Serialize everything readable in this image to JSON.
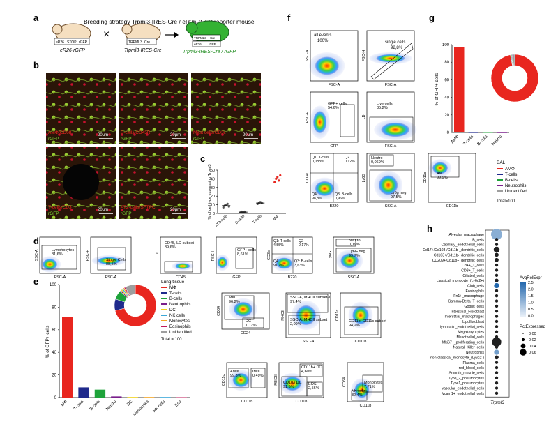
{
  "panels": {
    "a": "a",
    "b": "b",
    "c": "c",
    "d": "d",
    "e": "e",
    "f": "f",
    "g": "g",
    "h": "h"
  },
  "panel_a": {
    "title": "Breeding strategy Trpml3-IRES-Cre / eR26-rGFP reporter mouse",
    "mouse1": {
      "caption": "eR26-rGFP",
      "cassette": [
        "eR26",
        "STOP",
        "rGFP"
      ]
    },
    "mouse2": {
      "caption": "Trpml3-IRES-Cre",
      "cassette": [
        "TRPML3",
        "Cre"
      ]
    },
    "mouse3": {
      "caption": "Trpml3-IRES-Cre / rGFP",
      "cassette_top": [
        "TRPML3",
        "Cre"
      ],
      "cassette_bottom": [
        "eR26",
        "rGFP"
      ]
    },
    "cross": "×"
  },
  "panel_b": {
    "images": [
      {
        "label": "AMΦ/CD68",
        "sub": "rGFP",
        "scale": "20μm"
      },
      {
        "label": "B-cells/CD45R",
        "sub": "rGFP",
        "scale": "20μm"
      },
      {
        "label": "Mast cells/CD3ε",
        "sub": "rGFP",
        "scale": "20μm"
      },
      {
        "label": "T-cells/CD3",
        "sub": "rGFP",
        "scale": "20μm"
      },
      {
        "label": "AT2-cells/SFTPC",
        "sub": "rGFP",
        "scale": "20μm"
      }
    ]
  },
  "panel_c": {
    "chart_data": {
      "type": "scatter",
      "categories": [
        "AT2-cells",
        "B-cells",
        "T-cells",
        "MΦ"
      ],
      "means": [
        9,
        1.5,
        12,
        40
      ],
      "points": [
        [
          7,
          9,
          10,
          11,
          8
        ],
        [
          1,
          2,
          1.5,
          2
        ],
        [
          11,
          12,
          13,
          12
        ],
        [
          36,
          40,
          42,
          38,
          44
        ]
      ],
      "ylabel": "% of cell type expressing Trpml3",
      "ylim": [
        0,
        50
      ],
      "yticks": [
        "0",
        "10",
        "20",
        "30",
        "40",
        "50"
      ]
    }
  },
  "panel_d": {
    "gates": [
      {
        "name": "Lymphocytes",
        "value": "81,6%"
      },
      {
        "name": "Single Cells",
        "value": "88,5%"
      },
      {
        "name": "CD45, LD subset",
        "value": "39,6%"
      },
      {
        "name": "GFP+ cells",
        "value": "8,61%"
      },
      {
        "name": "Q1: T-cells",
        "value": "4,55%"
      },
      {
        "name": "Q2",
        "value": "0,17%"
      },
      {
        "name": "Q4",
        "value": "91,7%"
      },
      {
        "name": "Q3: B-cells",
        "value": "3,63%"
      },
      {
        "name": "Neutro",
        "value": "0,19%"
      },
      {
        "name": "Ly6G neg",
        "value": "99,7%"
      },
      {
        "name": "SSC-A, MHCII subset-1",
        "value": "97,4%"
      },
      {
        "name": "SSC-A, MHCII subset",
        "value": "2,09%"
      },
      {
        "name": "CD11b, CD11c subset",
        "value": "94,2%"
      },
      {
        "name": "MΦ",
        "value": "96,2%"
      },
      {
        "name": "DC",
        "value": "1,12%"
      },
      {
        "name": "AMΦ",
        "value": "99,3%"
      },
      {
        "name": "IMΦ",
        "value": "0,49%"
      },
      {
        "name": "CD11b+ DC",
        "value": "4,60%"
      },
      {
        "name": "CD103 DC",
        "value": "91,6%"
      },
      {
        "name": "EOS",
        "value": "2,56%"
      },
      {
        "name": "Monocytes",
        "value": "7,71%"
      },
      {
        "name": "NK cells",
        "value": "32,4%"
      }
    ],
    "axes": [
      "SSC-A",
      "FSC-A",
      "FSC-H",
      "FSC-A",
      "LD",
      "CD45",
      "FSC-H",
      "GFP",
      "CD3e",
      "B220",
      "Ly6G",
      "SSC-A",
      "CD64",
      "CD24",
      "MHCII",
      "SSC-A",
      "CD11c",
      "CD11b",
      "CD11c",
      "CD11b",
      "MHCII",
      "CD11b",
      "CD64",
      "CD11b"
    ]
  },
  "panel_e": {
    "chart_data": {
      "type": "bar",
      "categories": [
        "MΦ",
        "T-cells",
        "B-cells",
        "Neutro",
        "DC",
        "Monocytes",
        "NK cells",
        "Eos"
      ],
      "values": [
        71,
        9,
        7,
        1,
        0.5,
        0.5,
        0.5,
        0.3
      ],
      "colors": [
        "#e8261f",
        "#1f2a8c",
        "#1ea33a",
        "#7a1f8c",
        "#f0d21c",
        "#f5a623",
        "#3ba8d8",
        "#c2185b"
      ],
      "ylabel": "% of GFP+ cells",
      "ylim": [
        0,
        100
      ],
      "yticks": [
        "0",
        "20",
        "40",
        "60",
        "80",
        "100"
      ],
      "legend_title": "Lung tissue",
      "legend": [
        "MΦ",
        "T-cells",
        "B-cells",
        "Neutrophils",
        "DC",
        "NK cells",
        "Monocytes",
        "Eosinophils",
        "Unidentified"
      ],
      "legend_colors": [
        "#e8261f",
        "#1f2a8c",
        "#1ea33a",
        "#7a1f8c",
        "#f0d21c",
        "#3ba8d8",
        "#f5a623",
        "#c2185b",
        "#9e9e9e"
      ],
      "total": "Total = 100",
      "donut": [
        71,
        9,
        7,
        1,
        1,
        1,
        1,
        1,
        8
      ]
    }
  },
  "panel_f": {
    "plots": [
      {
        "y": "SSC-A",
        "x": "FSC-A",
        "gate": "all events",
        "value": "100%"
      },
      {
        "y": "FSC-H",
        "x": "FSC-A",
        "gate": "single cells",
        "value": "92,8%"
      },
      {
        "y": "FSC-H",
        "x": "GFP",
        "gate": "GFP+ cells",
        "value": "54,6%"
      },
      {
        "y": "LD",
        "x": "FSC-A",
        "gate": "Live cells",
        "value": "85,2%"
      },
      {
        "y": "CD3e",
        "x": "B220",
        "gate": "Q1: T-cells",
        "value": "0,088%"
      },
      {
        "y": "",
        "x": "",
        "gate": "Q2",
        "value": "0,12%"
      },
      {
        "y": "",
        "x": "",
        "gate": "Q4",
        "value": "98,8%"
      },
      {
        "y": "",
        "x": "",
        "gate": "Q3: B-cells",
        "value": "0,96%"
      },
      {
        "y": "Ly6G",
        "x": "SSC-A",
        "gate": "Neutro",
        "value": "0,069%"
      },
      {
        "y": "",
        "x": "",
        "gate": "Ly6g neg",
        "value": "97,5%"
      },
      {
        "y": "CD11c",
        "x": "CD11b",
        "gate": "AM",
        "value": "99,9%"
      }
    ]
  },
  "panel_g": {
    "chart_data": {
      "type": "bar",
      "categories": [
        "AMΦ",
        "T-cells",
        "B-cells",
        "Neutro"
      ],
      "values": [
        97,
        0.3,
        0.4,
        0.2
      ],
      "colors": [
        "#e8261f",
        "#1f2a8c",
        "#1ea33a",
        "#7a1f8c"
      ],
      "ylabel": "% of GFP+ cells",
      "ylim": [
        0,
        100
      ],
      "yticks": [
        "0",
        "20",
        "40",
        "60",
        "80",
        "100"
      ],
      "legend_title": "BAL",
      "legend": [
        "AMΦ",
        "T-cells",
        "B-cells",
        "Neutrophils",
        "Unidentified"
      ],
      "legend_colors": [
        "#e8261f",
        "#1f2a8c",
        "#1ea33a",
        "#7a1f8c",
        "#9e9e9e"
      ],
      "total": "Total=100",
      "donut": [
        97,
        0.5,
        0.5,
        0.5,
        1.5
      ]
    }
  },
  "panel_h": {
    "chart_data": {
      "type": "scatter",
      "xlabel": "Trpml3",
      "rows": [
        "Alveolar_macrophage",
        "B_cells",
        "Capillary_endothelial_cells",
        "Cd17+/Cd103-/Cd11b-_dendritic_cells",
        "Cd103+/Cd11b-_dendritic_cells",
        "CD209+/Cd11b+_dendritic_cells",
        "Cd4+_T_cells",
        "CD8+_T_cells",
        "Ciliated_cells",
        "classical_monocyte_(Ly6c2+)",
        "Club_cells",
        "Eosinophils",
        "Fn1+_macrophage",
        "Gamma-Delta_T_cells",
        "Goblet_cells",
        "Interstitial_Fibroblast",
        "Interstitial_macrophages",
        "Lipofibroblast",
        "lymphatic_endothelial_cells",
        "Megakaryocytes",
        "Mesothelial_cells",
        "Mki67+_proliferating_cells",
        "Natural_Killer_cells",
        "Neutrophils",
        "non-classical_monocyte_(Ly6c2-)",
        "Plasma_cells",
        "red_blood_cells",
        "Smooth_muscle_cells",
        "Type_2_pneumocytes",
        "Type1_pneumocytes",
        "vascular_endothelial_cells",
        "Vcam1+_endothelial_cells"
      ],
      "pct": [
        0.07,
        0.002,
        0.002,
        0.015,
        0.005,
        0.005,
        0.002,
        0.002,
        0.002,
        0.004,
        0.01,
        0.002,
        0.002,
        0.002,
        0.002,
        0.002,
        0.002,
        0.002,
        0.002,
        0.002,
        0.002,
        0.045,
        0.002,
        0.01,
        0.005,
        0.002,
        0.002,
        0.002,
        0.002,
        0.002,
        0.002,
        0.002
      ],
      "expr": [
        1.2,
        0,
        0,
        0,
        0,
        0,
        0,
        0,
        0,
        0,
        2.5,
        0,
        0,
        0,
        0,
        0,
        0,
        0,
        0,
        0,
        0,
        0,
        0,
        1.5,
        0,
        0,
        0,
        0,
        0,
        0,
        0,
        0
      ],
      "legend_expr_title": "AvgRelExpr",
      "legend_expr_ticks": [
        "2.5",
        "2.0",
        "1.5",
        "1.0",
        "0.5",
        "0.0"
      ],
      "legend_pct_title": "PctExpressed",
      "legend_pct": [
        "0.00",
        "0.02",
        "0.04",
        "0.06"
      ]
    }
  }
}
